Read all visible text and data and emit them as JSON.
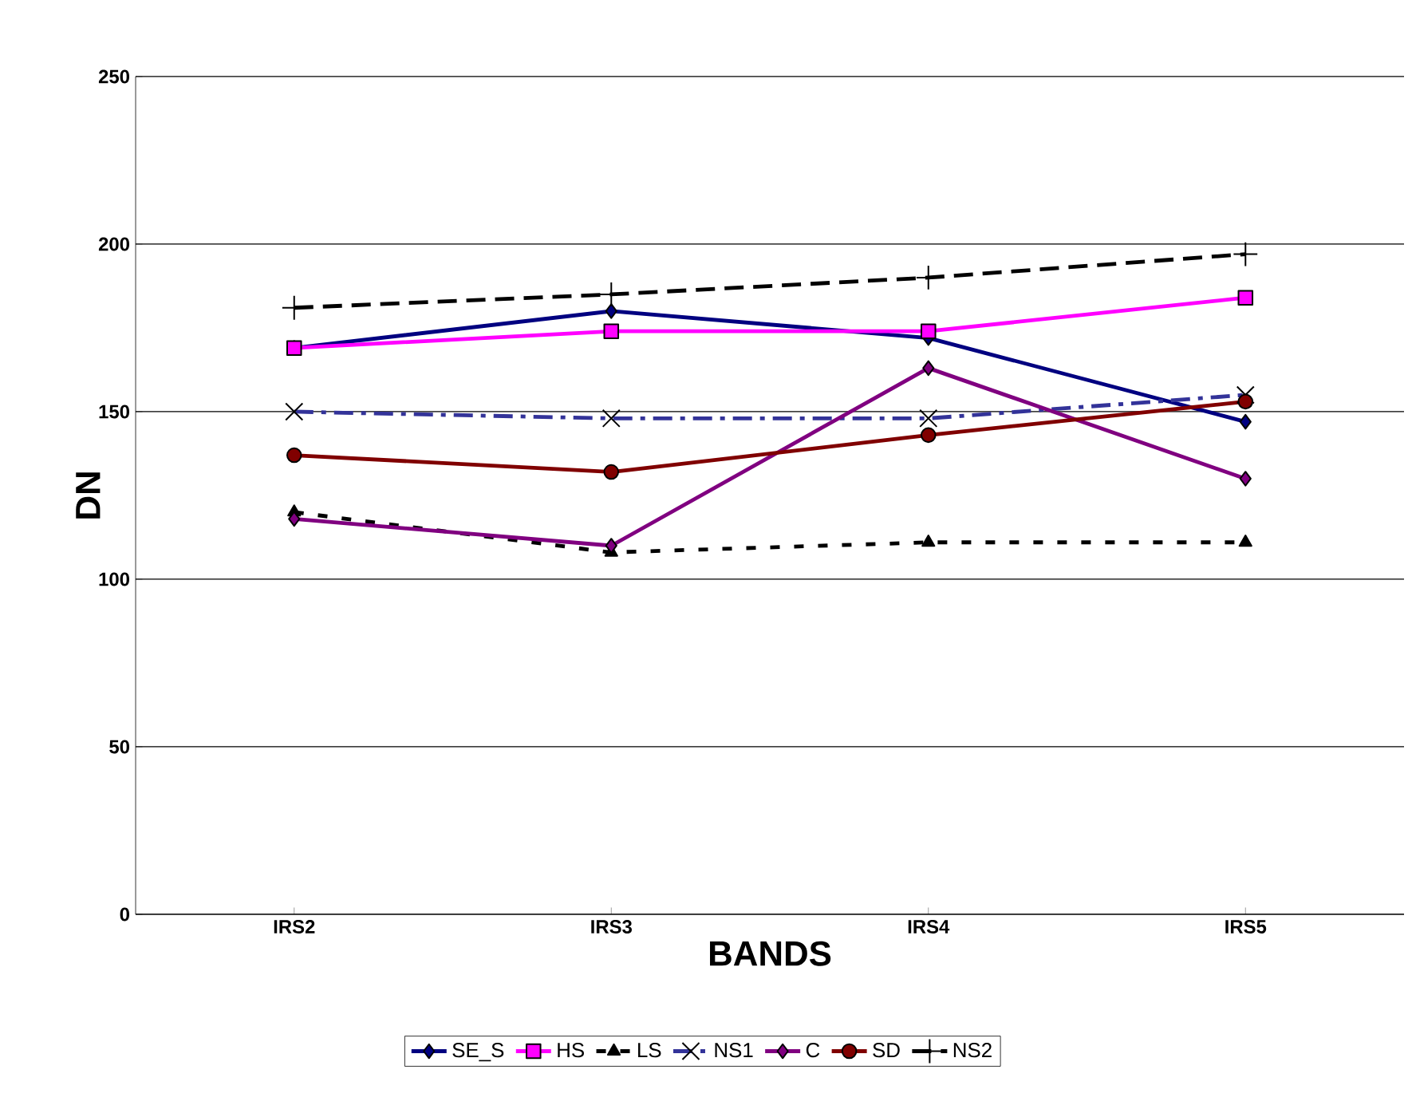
{
  "chart_data": {
    "type": "line",
    "xlabel": "BANDS",
    "ylabel": "DN",
    "categories": [
      "IRS2",
      "IRS3",
      "IRS4",
      "IRS5"
    ],
    "ylim": [
      0,
      250
    ],
    "yticks": [
      0,
      50,
      100,
      150,
      200,
      250
    ],
    "grid": "y",
    "legend": "bottom",
    "series": [
      {
        "name": "SE_S",
        "color": "#000080",
        "marker": "diamond",
        "line_style": "solid",
        "values": [
          169,
          180,
          172,
          147
        ]
      },
      {
        "name": "HS",
        "color": "#ff00ff",
        "marker": "square",
        "line_style": "solid",
        "values": [
          169,
          174,
          174,
          184
        ]
      },
      {
        "name": "LS",
        "color": "#000000",
        "marker": "triangle",
        "line_style": "dotted",
        "values": [
          120,
          108,
          111,
          111
        ]
      },
      {
        "name": "NS1",
        "color": "#333399",
        "marker": "cross",
        "line_style": "dashdot",
        "values": [
          150,
          148,
          148,
          155
        ]
      },
      {
        "name": "C",
        "color": "#800080",
        "marker": "diamond",
        "line_style": "solid",
        "values": [
          118,
          110,
          163,
          130
        ]
      },
      {
        "name": "SD",
        "color": "#800000",
        "marker": "circle",
        "line_style": "solid",
        "values": [
          137,
          132,
          143,
          153
        ]
      },
      {
        "name": "NS2",
        "color": "#000000",
        "marker": "plus",
        "line_style": "dashed",
        "values": [
          181,
          185,
          190,
          197
        ]
      }
    ]
  }
}
